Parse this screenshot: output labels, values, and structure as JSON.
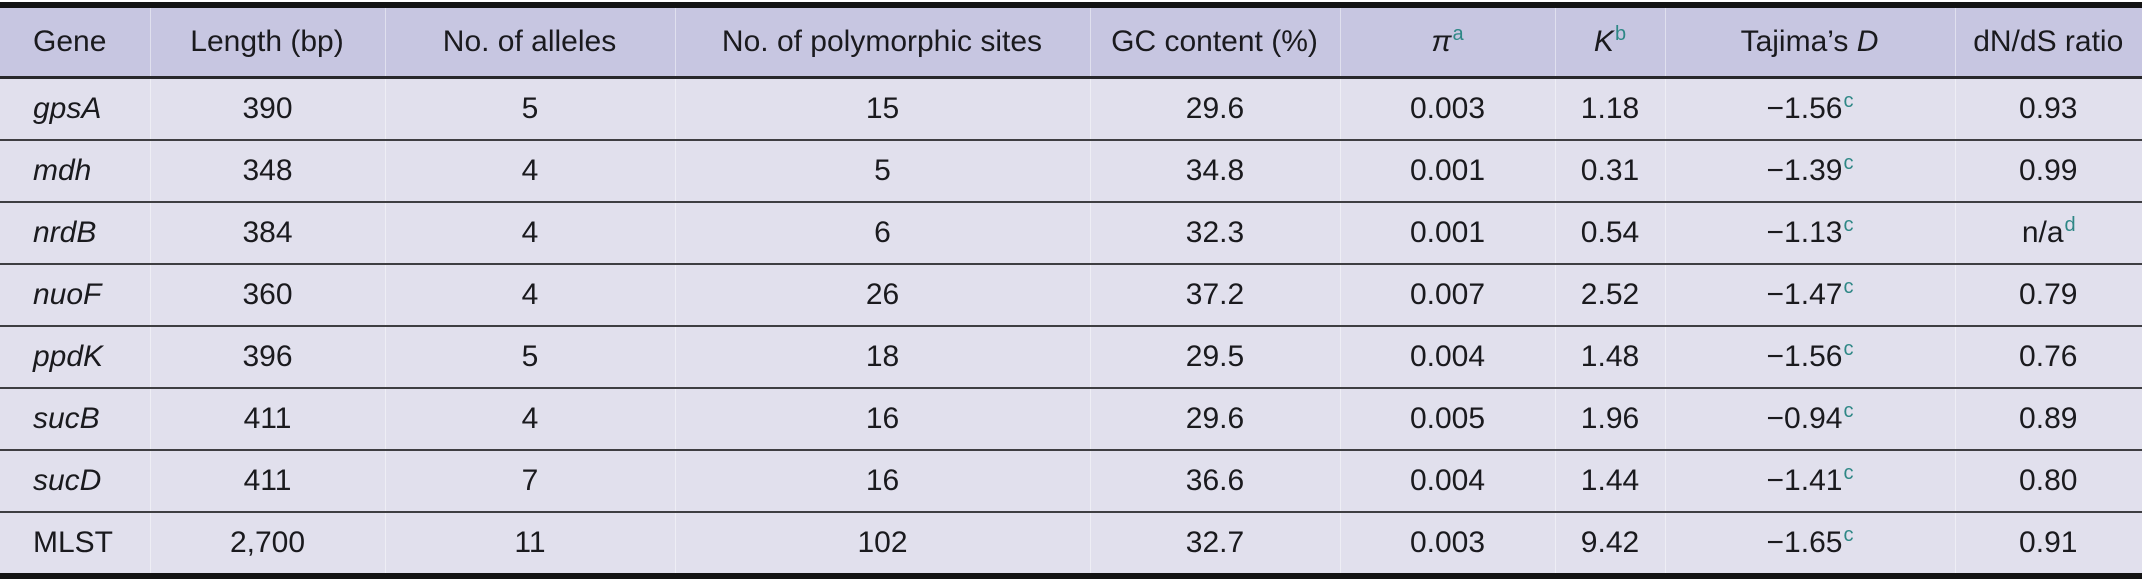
{
  "table": {
    "title": "Gene diversity statistics table",
    "columns": [
      {
        "label": "Gene",
        "italic": "",
        "sup": ""
      },
      {
        "label": "Length (bp)",
        "italic": "",
        "sup": ""
      },
      {
        "label": "No. of alleles",
        "italic": "",
        "sup": ""
      },
      {
        "label": "No. of polymorphic sites",
        "italic": "",
        "sup": ""
      },
      {
        "label": "GC content (%)",
        "italic": "",
        "sup": ""
      },
      {
        "label": "",
        "italic": "π",
        "sup": "a"
      },
      {
        "label": "",
        "italic": "K",
        "sup": "b"
      },
      {
        "label": "Tajima’s ",
        "italic": "D",
        "sup": ""
      },
      {
        "label": "dN/dS ratio",
        "italic": "",
        "sup": ""
      }
    ],
    "rows": [
      {
        "gene": "gpsA",
        "gene_class": "italic",
        "length": "390",
        "alleles": "5",
        "poly": "15",
        "gc": "29.6",
        "pi": "0.003",
        "k": "1.18",
        "tajima": "−1.56",
        "tajima_sup": "c",
        "dnds": "0.93",
        "dnds_sup": ""
      },
      {
        "gene": "mdh",
        "gene_class": "italic",
        "length": "348",
        "alleles": "4",
        "poly": "5",
        "gc": "34.8",
        "pi": "0.001",
        "k": "0.31",
        "tajima": "−1.39",
        "tajima_sup": "c",
        "dnds": "0.99",
        "dnds_sup": ""
      },
      {
        "gene": "nrdB",
        "gene_class": "italic",
        "length": "384",
        "alleles": "4",
        "poly": "6",
        "gc": "32.3",
        "pi": "0.001",
        "k": "0.54",
        "tajima": "−1.13",
        "tajima_sup": "c",
        "dnds": "n/a",
        "dnds_sup": "d"
      },
      {
        "gene": "nuoF",
        "gene_class": "italic",
        "length": "360",
        "alleles": "4",
        "poly": "26",
        "gc": "37.2",
        "pi": "0.007",
        "k": "2.52",
        "tajima": "−1.47",
        "tajima_sup": "c",
        "dnds": "0.79",
        "dnds_sup": ""
      },
      {
        "gene": "ppdK",
        "gene_class": "italic",
        "length": "396",
        "alleles": "5",
        "poly": "18",
        "gc": "29.5",
        "pi": "0.004",
        "k": "1.48",
        "tajima": "−1.56",
        "tajima_sup": "c",
        "dnds": "0.76",
        "dnds_sup": ""
      },
      {
        "gene": "sucB",
        "gene_class": "italic",
        "length": "411",
        "alleles": "4",
        "poly": "16",
        "gc": "29.6",
        "pi": "0.005",
        "k": "1.96",
        "tajima": "−0.94",
        "tajima_sup": "c",
        "dnds": "0.89",
        "dnds_sup": ""
      },
      {
        "gene": "sucD",
        "gene_class": "italic",
        "length": "411",
        "alleles": "7",
        "poly": "16",
        "gc": "36.6",
        "pi": "0.004",
        "k": "1.44",
        "tajima": "−1.41",
        "tajima_sup": "c",
        "dnds": "0.80",
        "dnds_sup": ""
      },
      {
        "gene": "MLST",
        "gene_class": "roman",
        "length": "2,700",
        "alleles": "11",
        "poly": "102",
        "gc": "32.7",
        "pi": "0.003",
        "k": "9.42",
        "tajima": "−1.65",
        "tajima_sup": "c",
        "dnds": "0.91",
        "dnds_sup": ""
      }
    ]
  },
  "colors": {
    "header_bg": "#c7c6e1",
    "body_bg": "#e1e0ed",
    "superscript_teal": "#2e8786",
    "rule_dark": "#131313",
    "text": "#1a1a1e"
  }
}
